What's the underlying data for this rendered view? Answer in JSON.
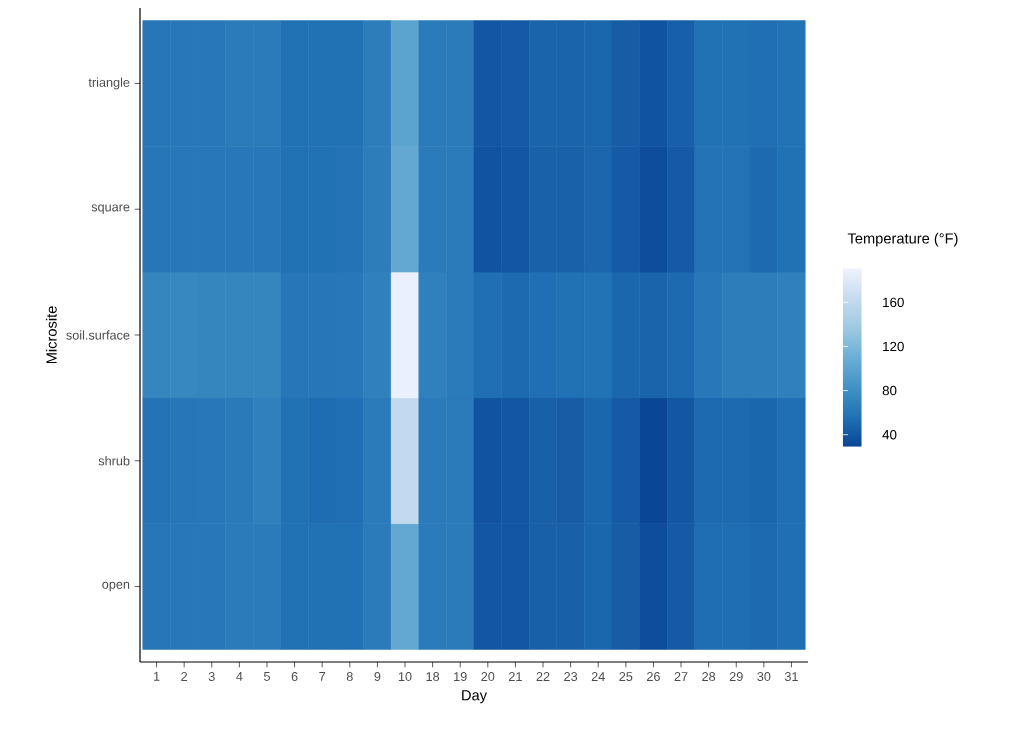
{
  "chart_data": {
    "type": "heatmap",
    "xlabel": "Day",
    "ylabel": "Microsite",
    "clabel": "Temperature (°F)",
    "categories": [
      "1",
      "2",
      "3",
      "4",
      "5",
      "6",
      "7",
      "8",
      "9",
      "10",
      "18",
      "19",
      "20",
      "21",
      "22",
      "23",
      "24",
      "25",
      "26",
      "27",
      "28",
      "29",
      "30",
      "31"
    ],
    "y_categories": [
      "triangle",
      "square",
      "soil.surface",
      "shrub",
      "open"
    ],
    "cells": [
      [
        60,
        62,
        62,
        64,
        64,
        56,
        56,
        56,
        66,
        100,
        64,
        64,
        40,
        42,
        48,
        48,
        50,
        44,
        38,
        45,
        56,
        56,
        55,
        57
      ],
      [
        60,
        62,
        62,
        62,
        62,
        56,
        56,
        58,
        66,
        104,
        64,
        64,
        38,
        40,
        47,
        47,
        49,
        42,
        34,
        42,
        58,
        58,
        52,
        56
      ],
      [
        72,
        74,
        72,
        72,
        72,
        60,
        60,
        62,
        68,
        188,
        68,
        64,
        55,
        52,
        55,
        56,
        57,
        50,
        48,
        52,
        62,
        66,
        66,
        68
      ],
      [
        58,
        60,
        62,
        63,
        68,
        56,
        53,
        55,
        64,
        162,
        64,
        64,
        38,
        40,
        46,
        44,
        50,
        42,
        30,
        40,
        52,
        52,
        50,
        55
      ],
      [
        60,
        62,
        62,
        64,
        64,
        56,
        56,
        56,
        64,
        104,
        64,
        64,
        40,
        40,
        46,
        46,
        50,
        44,
        34,
        42,
        54,
        54,
        52,
        55
      ]
    ],
    "clim": [
      29,
      191
    ],
    "cticks": [
      40,
      80,
      120,
      160
    ]
  }
}
